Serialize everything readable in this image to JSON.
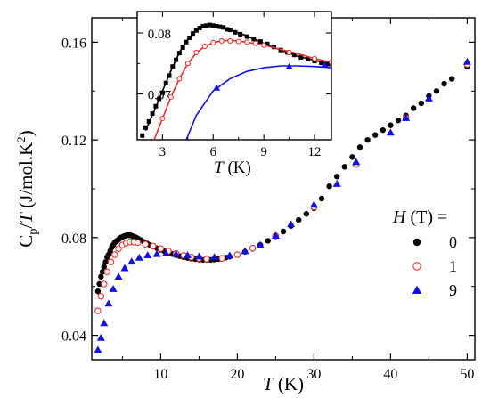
{
  "chart_data": [
    {
      "type": "scatter",
      "title": "",
      "xlabel": "T (K)",
      "ylabel": "Cp/T (J/mol.K²)",
      "xlim": [
        1,
        51
      ],
      "ylim": [
        0.03,
        0.17
      ],
      "x_ticks": [
        10,
        20,
        30,
        40,
        50
      ],
      "y_ticks": [
        0.04,
        0.08,
        0.12,
        0.16
      ],
      "y_tick_labels": [
        "0.04",
        "0.08",
        "0.12",
        "0.16"
      ],
      "legend_title": "H (T) =",
      "legend_position": "right",
      "series": [
        {
          "name": "0",
          "marker": "filled-circle",
          "color": "#000000",
          "points": [
            [
              1.8,
              0.058
            ],
            [
              2.0,
              0.061
            ],
            [
              2.2,
              0.064
            ],
            [
              2.4,
              0.066
            ],
            [
              2.6,
              0.068
            ],
            [
              2.8,
              0.07
            ],
            [
              3.0,
              0.072
            ],
            [
              3.2,
              0.073
            ],
            [
              3.4,
              0.0745
            ],
            [
              3.6,
              0.076
            ],
            [
              3.8,
              0.077
            ],
            [
              4.0,
              0.078
            ],
            [
              4.2,
              0.0785
            ],
            [
              4.4,
              0.079
            ],
            [
              4.6,
              0.0795
            ],
            [
              4.8,
              0.08
            ],
            [
              5.0,
              0.0803
            ],
            [
              5.2,
              0.0806
            ],
            [
              5.4,
              0.0808
            ],
            [
              5.6,
              0.081
            ],
            [
              5.8,
              0.081
            ],
            [
              6.0,
              0.081
            ],
            [
              6.2,
              0.0808
            ],
            [
              6.4,
              0.0805
            ],
            [
              6.6,
              0.0803
            ],
            [
              6.8,
              0.08
            ],
            [
              7.0,
              0.0797
            ],
            [
              7.4,
              0.079
            ],
            [
              7.8,
              0.0783
            ],
            [
              8.2,
              0.0776
            ],
            [
              8.6,
              0.077
            ],
            [
              9.0,
              0.0764
            ],
            [
              9.5,
              0.0757
            ],
            [
              10.0,
              0.075
            ],
            [
              10.5,
              0.0744
            ],
            [
              11.0,
              0.0738
            ],
            [
              11.5,
              0.0733
            ],
            [
              12.0,
              0.0728
            ],
            [
              12.5,
              0.0724
            ],
            [
              13.0,
              0.072
            ],
            [
              13.5,
              0.0717
            ],
            [
              14.0,
              0.0714
            ],
            [
              14.5,
              0.0712
            ],
            [
              15.0,
              0.071
            ],
            [
              15.5,
              0.0709
            ],
            [
              16.0,
              0.0709
            ],
            [
              16.5,
              0.0709
            ],
            [
              17.0,
              0.071
            ],
            [
              17.5,
              0.0712
            ],
            [
              18.0,
              0.0715
            ],
            [
              18.5,
              0.0718
            ],
            [
              19.0,
              0.0722
            ],
            [
              20.0,
              0.073
            ],
            [
              21.0,
              0.0742
            ],
            [
              22.0,
              0.0755
            ],
            [
              23.0,
              0.077
            ],
            [
              24.0,
              0.0787
            ],
            [
              25.0,
              0.0805
            ],
            [
              26.0,
              0.0825
            ],
            [
              27.0,
              0.0848
            ],
            [
              28.0,
              0.0872
            ],
            [
              29.0,
              0.0897
            ],
            [
              30.0,
              0.092
            ],
            [
              31.0,
              0.096
            ],
            [
              32.0,
              0.101
            ],
            [
              33.0,
              0.105
            ],
            [
              34.0,
              0.109
            ],
            [
              35.0,
              0.113
            ],
            [
              36.0,
              0.117
            ],
            [
              37.0,
              0.12
            ],
            [
              38.0,
              0.122
            ],
            [
              39.0,
              0.124
            ],
            [
              40.0,
              0.126
            ],
            [
              41.0,
              0.128
            ],
            [
              42.0,
              0.13
            ],
            [
              43.0,
              0.133
            ],
            [
              44.0,
              0.135
            ],
            [
              45.0,
              0.138
            ],
            [
              46.0,
              0.14
            ],
            [
              47.0,
              0.143
            ],
            [
              48.0,
              0.145
            ],
            [
              50.0,
              0.15
            ]
          ]
        },
        {
          "name": "1",
          "marker": "open-circle",
          "color": "#e8302a",
          "points": [
            [
              1.8,
              0.05
            ],
            [
              2.2,
              0.056
            ],
            [
              2.6,
              0.061
            ],
            [
              3.0,
              0.066
            ],
            [
              3.5,
              0.07
            ],
            [
              4.0,
              0.073
            ],
            [
              4.5,
              0.0755
            ],
            [
              5.0,
              0.077
            ],
            [
              5.5,
              0.0778
            ],
            [
              6.0,
              0.0782
            ],
            [
              6.5,
              0.0782
            ],
            [
              7.0,
              0.078
            ],
            [
              8.0,
              0.0773
            ],
            [
              9.0,
              0.0765
            ],
            [
              10.0,
              0.0755
            ],
            [
              11.0,
              0.0745
            ],
            [
              12.0,
              0.0735
            ],
            [
              13.0,
              0.0727
            ],
            [
              14.0,
              0.072
            ],
            [
              15.0,
              0.0715
            ],
            [
              16.0,
              0.0712
            ],
            [
              18.0,
              0.0715
            ],
            [
              20.0,
              0.073
            ],
            [
              22.0,
              0.0757
            ],
            [
              25.0,
              0.0807
            ],
            [
              30.0,
              0.0925
            ],
            [
              35.5,
              0.11
            ],
            [
              42.0,
              0.129
            ],
            [
              50.0,
              0.151
            ]
          ]
        },
        {
          "name": "9",
          "marker": "filled-triangle",
          "color": "#1010e0",
          "points": [
            [
              1.8,
              0.034
            ],
            [
              2.2,
              0.039
            ],
            [
              2.6,
              0.045
            ],
            [
              3.2,
              0.053
            ],
            [
              3.8,
              0.059
            ],
            [
              4.5,
              0.064
            ],
            [
              5.3,
              0.0675
            ],
            [
              6.2,
              0.0702
            ],
            [
              7.2,
              0.0718
            ],
            [
              8.3,
              0.0728
            ],
            [
              9.5,
              0.0733
            ],
            [
              10.7,
              0.0735
            ],
            [
              12.0,
              0.0733
            ],
            [
              13.5,
              0.0728
            ],
            [
              15.0,
              0.0723
            ],
            [
              17.0,
              0.072
            ],
            [
              19.0,
              0.0727
            ],
            [
              21.0,
              0.0745
            ],
            [
              23.0,
              0.077
            ],
            [
              25.0,
              0.0808
            ],
            [
              27.0,
              0.0855
            ],
            [
              30.0,
              0.0935
            ],
            [
              33.0,
              0.102
            ],
            [
              35.5,
              0.111
            ],
            [
              40.0,
              0.123
            ],
            [
              42.0,
              0.129
            ],
            [
              45.0,
              0.137
            ],
            [
              50.0,
              0.152
            ]
          ]
        }
      ]
    },
    {
      "type": "line",
      "title": "",
      "xlabel": "T (K)",
      "ylabel": "",
      "xlim": [
        1.5,
        13
      ],
      "ylim": [
        0.0625,
        0.0835
      ],
      "x_ticks": [
        3,
        6,
        9,
        12
      ],
      "y_ticks": [
        0.07,
        0.08
      ],
      "y_tick_labels": [
        "0.07",
        "0.08"
      ],
      "legend_position": "none",
      "series": [
        {
          "name": "0",
          "marker": "filled-square",
          "color": "#000000",
          "fit": [
            [
              2.0,
              0.064
            ],
            [
              2.5,
              0.0672
            ],
            [
              3.0,
              0.0705
            ],
            [
              3.5,
              0.0738
            ],
            [
              4.0,
              0.0768
            ],
            [
              4.5,
              0.079
            ],
            [
              5.0,
              0.0805
            ],
            [
              5.5,
              0.0811
            ],
            [
              6.0,
              0.0812
            ],
            [
              6.5,
              0.081
            ],
            [
              7.0,
              0.0805
            ],
            [
              8.0,
              0.0795
            ],
            [
              9.0,
              0.0783
            ],
            [
              10.0,
              0.0772
            ],
            [
              11.0,
              0.0762
            ],
            [
              12.0,
              0.0755
            ],
            [
              13.0,
              0.0749
            ]
          ],
          "points": [
            [
              1.8,
              0.0632
            ],
            [
              2.0,
              0.0645
            ],
            [
              2.2,
              0.0655
            ],
            [
              2.4,
              0.0668
            ],
            [
              2.6,
              0.068
            ],
            [
              2.8,
              0.0692
            ],
            [
              3.0,
              0.0702
            ],
            [
              3.2,
              0.0718
            ],
            [
              3.4,
              0.073
            ],
            [
              3.6,
              0.0745
            ],
            [
              3.8,
              0.0756
            ],
            [
              4.0,
              0.0767
            ],
            [
              4.2,
              0.0776
            ],
            [
              4.4,
              0.0785
            ],
            [
              4.6,
              0.0792
            ],
            [
              4.8,
              0.0799
            ],
            [
              5.0,
              0.0804
            ],
            [
              5.2,
              0.0808
            ],
            [
              5.4,
              0.0811
            ],
            [
              5.6,
              0.0812
            ],
            [
              5.8,
              0.0813
            ],
            [
              6.0,
              0.0812
            ],
            [
              6.2,
              0.0811
            ],
            [
              6.4,
              0.081
            ],
            [
              6.6,
              0.0809
            ],
            [
              6.8,
              0.0806
            ],
            [
              7.0,
              0.0805
            ],
            [
              7.3,
              0.0801
            ],
            [
              7.6,
              0.0798
            ],
            [
              8.0,
              0.0794
            ],
            [
              8.4,
              0.079
            ],
            [
              8.8,
              0.0786
            ],
            [
              9.2,
              0.0782
            ],
            [
              9.6,
              0.0777
            ],
            [
              10.0,
              0.0772
            ],
            [
              10.4,
              0.0768
            ],
            [
              10.8,
              0.0764
            ],
            [
              11.2,
              0.076
            ],
            [
              11.6,
              0.0757
            ],
            [
              12.0,
              0.0754
            ],
            [
              12.4,
              0.0751
            ],
            [
              12.8,
              0.0749
            ]
          ]
        },
        {
          "name": "1",
          "marker": "open-circle",
          "color": "#e8302a",
          "fit": [
            [
              2.5,
              0.0625
            ],
            [
              3.0,
              0.066
            ],
            [
              3.5,
              0.0695
            ],
            [
              4.0,
              0.0725
            ],
            [
              4.5,
              0.075
            ],
            [
              5.0,
              0.0767
            ],
            [
              5.5,
              0.0778
            ],
            [
              6.0,
              0.0784
            ],
            [
              6.5,
              0.0787
            ],
            [
              7.0,
              0.0788
            ],
            [
              8.0,
              0.0785
            ],
            [
              9.0,
              0.078
            ],
            [
              10.0,
              0.0773
            ],
            [
              11.0,
              0.0766
            ],
            [
              12.0,
              0.0758
            ],
            [
              13.0,
              0.0752
            ]
          ],
          "points": [
            [
              3.0,
              0.066
            ],
            [
              3.5,
              0.0695
            ],
            [
              4.0,
              0.0725
            ],
            [
              4.5,
              0.075
            ],
            [
              5.0,
              0.0768
            ],
            [
              5.5,
              0.0778
            ],
            [
              6.0,
              0.0784
            ],
            [
              6.5,
              0.0787
            ],
            [
              7.0,
              0.0787
            ],
            [
              7.5,
              0.0786
            ],
            [
              8.0,
              0.0785
            ],
            [
              8.5,
              0.0783
            ],
            [
              9.0,
              0.078
            ],
            [
              10.5,
              0.0768
            ],
            [
              12.0,
              0.0758
            ],
            [
              13.0,
              0.0752
            ]
          ]
        },
        {
          "name": "9",
          "marker": "filled-triangle",
          "color": "#1010e0",
          "fit": [
            [
              4.4,
              0.0625
            ],
            [
              5.0,
              0.0665
            ],
            [
              6.0,
              0.0705
            ],
            [
              7.0,
              0.0725
            ],
            [
              8.0,
              0.0737
            ],
            [
              9.0,
              0.0743
            ],
            [
              10.0,
              0.0746
            ],
            [
              11.0,
              0.0746
            ],
            [
              12.0,
              0.0745
            ],
            [
              13.0,
              0.0743
            ]
          ],
          "points": [
            [
              6.2,
              0.071
            ],
            [
              10.5,
              0.0745
            ],
            [
              12.6,
              0.0748
            ]
          ]
        }
      ]
    }
  ]
}
